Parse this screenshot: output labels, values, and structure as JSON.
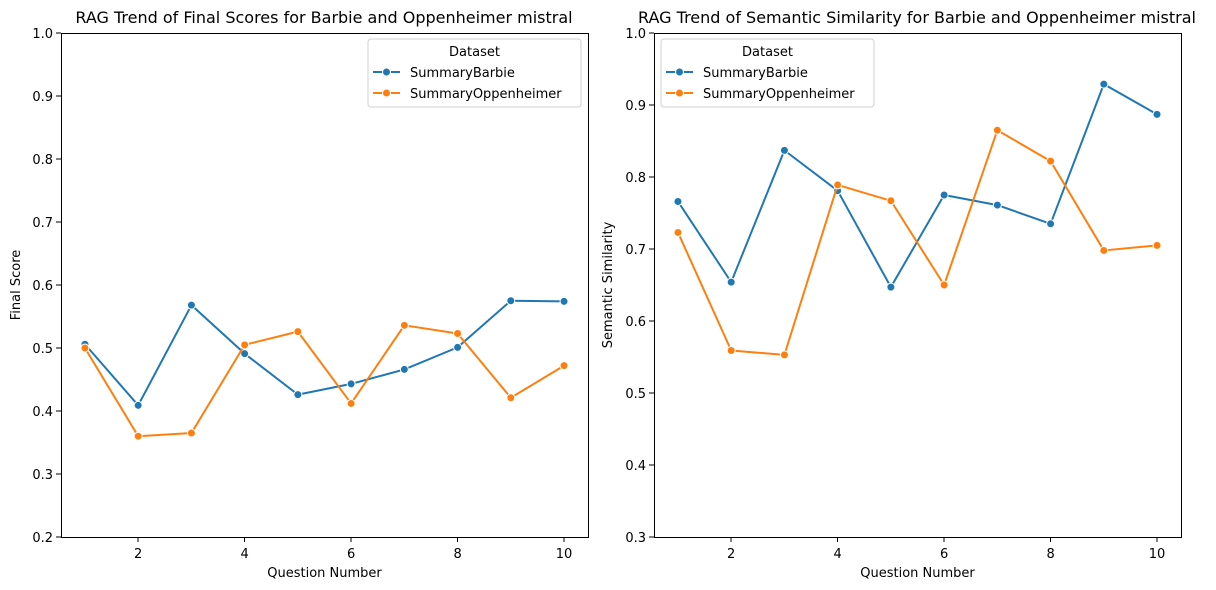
{
  "chart_data": [
    {
      "type": "line",
      "title": "RAG Trend of Final Scores for Barbie and Oppenheimer mistral",
      "xlabel": "Question Number",
      "ylabel": "Final Score",
      "xlim": [
        0.55,
        10.45
      ],
      "ylim": [
        0.2,
        1.0
      ],
      "xticks": [
        2,
        4,
        6,
        8,
        10
      ],
      "yticks": [
        0.2,
        0.3,
        0.4,
        0.5,
        0.6,
        0.7,
        0.8,
        0.9,
        1.0
      ],
      "grid": false,
      "legend": {
        "title": "Dataset",
        "placement": "top-right",
        "entries": [
          "SummaryBarbie",
          "SummaryOppenheimer"
        ]
      },
      "x": [
        1,
        2,
        3,
        4,
        5,
        6,
        7,
        8,
        9,
        10
      ],
      "series": [
        {
          "name": "SummaryBarbie",
          "color": "#1f77b4",
          "values": [
            0.506,
            0.409,
            0.568,
            0.491,
            0.426,
            0.443,
            0.466,
            0.501,
            0.575,
            0.574
          ]
        },
        {
          "name": "SummaryOppenheimer",
          "color": "#ff7f0e",
          "values": [
            0.5,
            0.36,
            0.365,
            0.505,
            0.526,
            0.412,
            0.536,
            0.523,
            0.421,
            0.472
          ]
        }
      ]
    },
    {
      "type": "line",
      "title": "RAG Trend of Semantic Similarity for Barbie and Oppenheimer mistral",
      "xlabel": "Question Number",
      "ylabel": "Semantic Similarity",
      "xlim": [
        0.55,
        10.45
      ],
      "ylim": [
        0.3,
        1.0
      ],
      "xticks": [
        2,
        4,
        6,
        8,
        10
      ],
      "yticks": [
        0.3,
        0.4,
        0.5,
        0.6,
        0.7,
        0.8,
        0.9,
        1.0
      ],
      "grid": false,
      "legend": {
        "title": "Dataset",
        "placement": "top-left",
        "entries": [
          "SummaryBarbie",
          "SummaryOppenheimer"
        ]
      },
      "x": [
        1,
        2,
        3,
        4,
        5,
        6,
        7,
        8,
        9,
        10
      ],
      "series": [
        {
          "name": "SummaryBarbie",
          "color": "#1f77b4",
          "values": [
            0.766,
            0.654,
            0.837,
            0.781,
            0.647,
            0.775,
            0.761,
            0.735,
            0.929,
            0.887
          ]
        },
        {
          "name": "SummaryOppenheimer",
          "color": "#ff7f0e",
          "values": [
            0.723,
            0.559,
            0.553,
            0.789,
            0.767,
            0.65,
            0.865,
            0.822,
            0.698,
            0.705
          ]
        }
      ]
    }
  ]
}
